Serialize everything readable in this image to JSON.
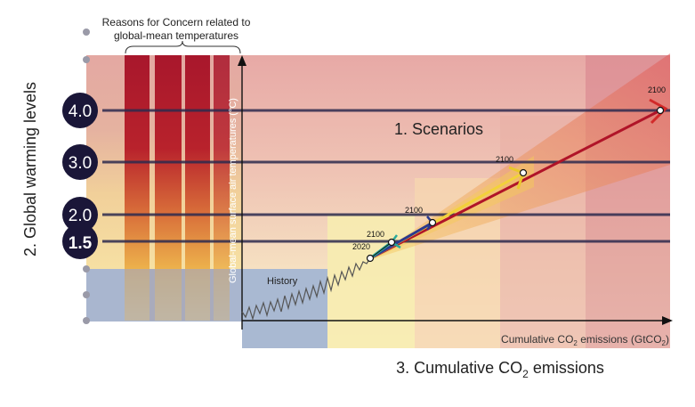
{
  "rfc_title_line1": "Reasons for Concern related to",
  "rfc_title_line2": "global-mean temperatures",
  "gw_axis_label": "2. Global warming levels",
  "gw_levels": [
    "4.0",
    "3.0",
    "2.0",
    "1.5"
  ],
  "temp_axis_label": "Global-mean surface air temperatures (°C)",
  "scenarios_label": "1. Scenarios",
  "history_label": "History",
  "emissions_axis_label": {
    "pre": "Cumulative CO",
    "sub": "2",
    "post": " emissions (GtCO",
    "sub2": "2",
    "end": ")"
  },
  "bottom_title": {
    "pre": "3. Cumulative CO",
    "sub": "2",
    "post": " emissions"
  },
  "year_labels": {
    "start": "2020",
    "s1": "2100",
    "s2": "2100",
    "s3": "2100",
    "s4": "2100"
  },
  "colors": {
    "s1": "#2aa89a",
    "s2": "#2b3a8f",
    "s3": "#f2d23a",
    "s4": "#c0182a",
    "circle": "#1a1638",
    "history": "#555555"
  }
}
